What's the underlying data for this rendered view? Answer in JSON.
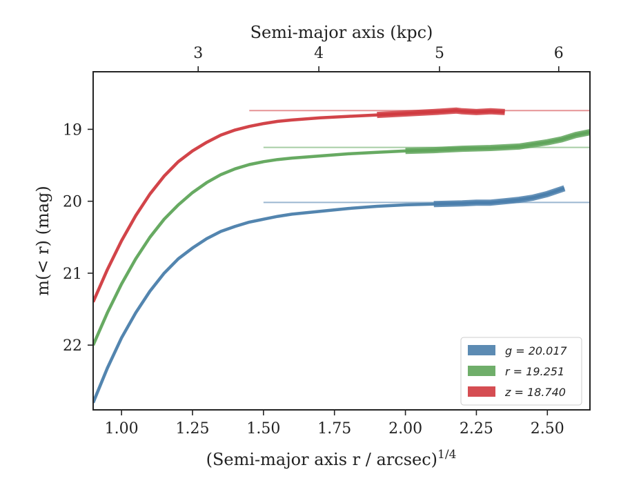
{
  "chart_data": {
    "type": "line",
    "xlabel": "(Semi-major axis r / arcsec)",
    "xlabel_sup": "1/4",
    "ylabel": "m(< r) (mag)",
    "top_xlabel": "Semi-major axis (kpc)",
    "xlim": [
      0.9,
      2.65
    ],
    "ylim": [
      22.9,
      18.2
    ],
    "y_inverted": true,
    "xticks": [
      1.0,
      1.25,
      1.5,
      1.75,
      2.0,
      2.25,
      2.5
    ],
    "xtick_labels": [
      "1.00",
      "1.25",
      "1.50",
      "1.75",
      "2.00",
      "2.25",
      "2.50"
    ],
    "yticks": [
      19,
      20,
      21,
      22
    ],
    "ytick_labels": [
      "19",
      "20",
      "21",
      "22"
    ],
    "top_ticks_x": [
      1.27,
      1.695,
      2.12,
      2.54
    ],
    "top_tick_labels": [
      "3",
      "4",
      "5",
      "6"
    ],
    "grid": false,
    "legend_position": "bottom-right",
    "series": [
      {
        "name": "g = 20.017",
        "color": "#4a7eab",
        "asymptote": 20.017,
        "x": [
          0.9,
          0.95,
          1.0,
          1.05,
          1.1,
          1.15,
          1.2,
          1.25,
          1.3,
          1.35,
          1.4,
          1.45,
          1.5,
          1.55,
          1.6,
          1.7,
          1.8,
          1.9,
          2.0,
          2.1,
          2.2,
          2.25,
          2.3,
          2.35,
          2.4,
          2.45,
          2.5,
          2.56
        ],
        "y": [
          22.8,
          22.32,
          21.9,
          21.55,
          21.25,
          21.0,
          20.8,
          20.65,
          20.52,
          20.42,
          20.35,
          20.29,
          20.25,
          20.21,
          20.18,
          20.14,
          20.1,
          20.07,
          20.05,
          20.04,
          20.03,
          20.02,
          20.02,
          20.0,
          19.98,
          19.95,
          19.9,
          19.82
        ]
      },
      {
        "name": "r = 19.251",
        "color": "#5fa55a",
        "asymptote": 19.251,
        "x": [
          0.9,
          0.95,
          1.0,
          1.05,
          1.1,
          1.15,
          1.2,
          1.25,
          1.3,
          1.35,
          1.4,
          1.45,
          1.5,
          1.55,
          1.6,
          1.7,
          1.8,
          1.9,
          2.0,
          2.1,
          2.2,
          2.3,
          2.4,
          2.5,
          2.55,
          2.6,
          2.65
        ],
        "y": [
          22.0,
          21.55,
          21.15,
          20.8,
          20.5,
          20.25,
          20.05,
          19.88,
          19.74,
          19.63,
          19.55,
          19.49,
          19.45,
          19.42,
          19.4,
          19.37,
          19.34,
          19.32,
          19.3,
          19.29,
          19.27,
          19.26,
          19.24,
          19.18,
          19.14,
          19.08,
          19.04
        ]
      },
      {
        "name": "z = 18.740",
        "color": "#d03a3f",
        "asymptote": 18.74,
        "x": [
          0.9,
          0.95,
          1.0,
          1.05,
          1.1,
          1.15,
          1.2,
          1.25,
          1.3,
          1.35,
          1.4,
          1.45,
          1.5,
          1.55,
          1.6,
          1.7,
          1.8,
          1.9,
          2.0,
          2.1,
          2.18,
          2.2,
          2.25,
          2.3,
          2.35
        ],
        "y": [
          21.4,
          20.95,
          20.55,
          20.2,
          19.9,
          19.65,
          19.45,
          19.3,
          19.18,
          19.08,
          19.01,
          18.96,
          18.92,
          18.89,
          18.87,
          18.84,
          18.82,
          18.8,
          18.78,
          18.76,
          18.74,
          18.75,
          18.76,
          18.75,
          18.76
        ]
      }
    ]
  }
}
